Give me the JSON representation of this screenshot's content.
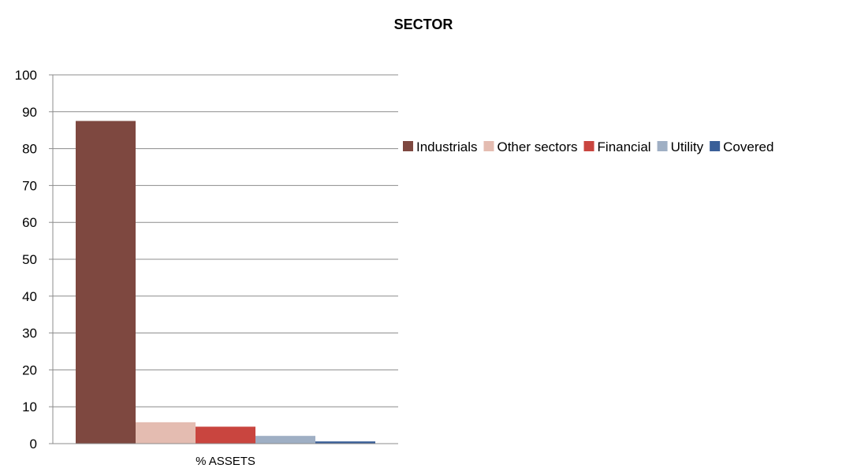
{
  "chart_data": {
    "type": "bar",
    "title": "SECTOR",
    "categories": [
      "% ASSETS"
    ],
    "series": [
      {
        "name": "Industrials",
        "values": [
          87.5
        ],
        "color": "#7e4840"
      },
      {
        "name": "Other sectors",
        "values": [
          5.8
        ],
        "color": "#e4bcb1"
      },
      {
        "name": "Financial",
        "values": [
          4.6
        ],
        "color": "#c9453f"
      },
      {
        "name": "Utility",
        "values": [
          2.1
        ],
        "color": "#9fafc4"
      },
      {
        "name": "Covered",
        "values": [
          0.6
        ],
        "color": "#3a5f98"
      }
    ],
    "ylim": [
      0,
      100
    ],
    "yticks": [
      "0",
      "10",
      "20",
      "30",
      "40",
      "50",
      "60",
      "70",
      "80",
      "90",
      "100"
    ],
    "grid": true,
    "legend": "right"
  }
}
